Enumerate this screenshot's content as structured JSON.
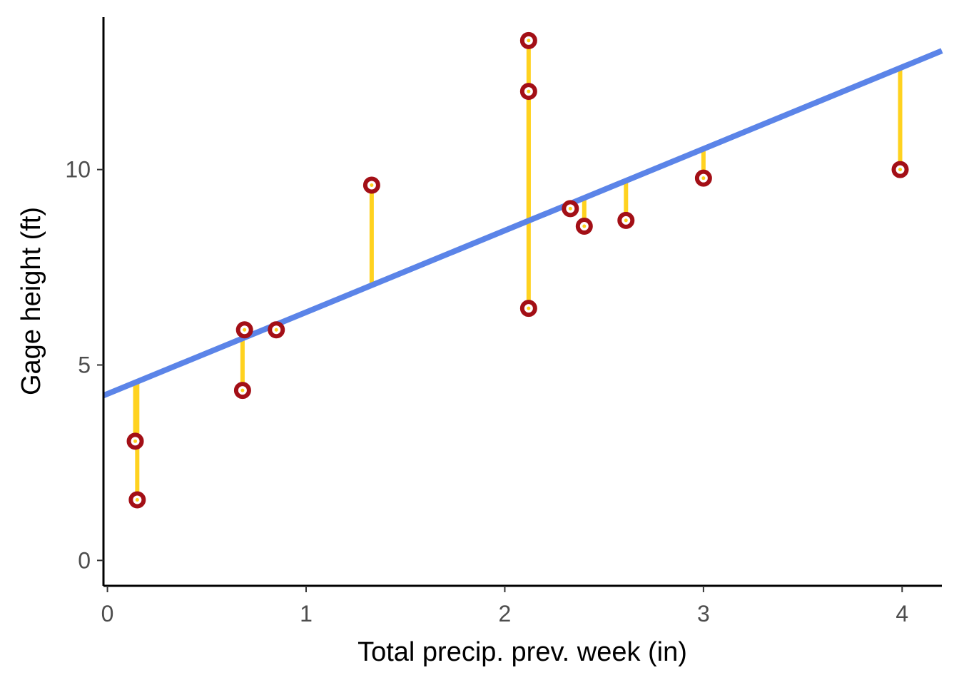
{
  "chart_data": {
    "type": "scatter",
    "title": "",
    "xlabel": "Total precip. prev. week (in)",
    "ylabel": "Gage height (ft)",
    "xlim": [
      -0.02,
      4.2
    ],
    "ylim": [
      -0.65,
      13.9
    ],
    "xticks": [
      0,
      1,
      2,
      3,
      4
    ],
    "yticks": [
      0,
      5,
      10
    ],
    "grid": false,
    "legend": "none",
    "colors": {
      "fit_line": "#5b84e8",
      "residual": "#ffd21f",
      "point_edge": "#a30f16",
      "point_fill": "#ffffff"
    },
    "fit_line": {
      "intercept": 4.26,
      "slope": 2.09
    },
    "points": [
      {
        "x": 0.14,
        "y": 3.05
      },
      {
        "x": 0.15,
        "y": 1.55
      },
      {
        "x": 0.68,
        "y": 4.35
      },
      {
        "x": 0.69,
        "y": 5.9
      },
      {
        "x": 0.85,
        "y": 5.9
      },
      {
        "x": 1.33,
        "y": 9.6
      },
      {
        "x": 2.12,
        "y": 13.3
      },
      {
        "x": 2.12,
        "y": 12.0
      },
      {
        "x": 2.12,
        "y": 6.45
      },
      {
        "x": 2.33,
        "y": 9.0
      },
      {
        "x": 2.4,
        "y": 8.55
      },
      {
        "x": 2.61,
        "y": 8.7
      },
      {
        "x": 3.0,
        "y": 9.78
      },
      {
        "x": 3.99,
        "y": 10.0
      }
    ]
  }
}
